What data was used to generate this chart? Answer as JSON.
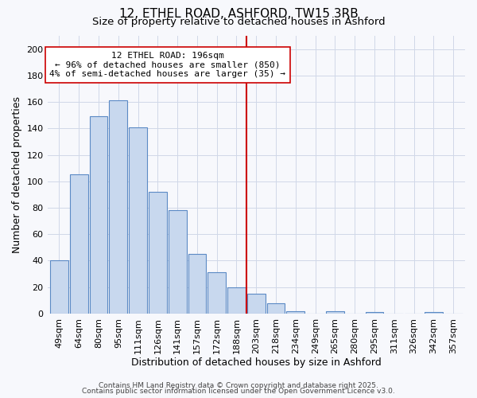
{
  "title": "12, ETHEL ROAD, ASHFORD, TW15 3RB",
  "subtitle": "Size of property relative to detached houses in Ashford",
  "xlabel": "Distribution of detached houses by size in Ashford",
  "ylabel": "Number of detached properties",
  "categories": [
    "49sqm",
    "64sqm",
    "80sqm",
    "95sqm",
    "111sqm",
    "126sqm",
    "141sqm",
    "157sqm",
    "172sqm",
    "188sqm",
    "203sqm",
    "218sqm",
    "234sqm",
    "249sqm",
    "265sqm",
    "280sqm",
    "295sqm",
    "311sqm",
    "326sqm",
    "342sqm",
    "357sqm"
  ],
  "values": [
    40,
    105,
    149,
    161,
    141,
    92,
    78,
    45,
    31,
    20,
    15,
    8,
    2,
    0,
    2,
    0,
    1,
    0,
    0,
    1,
    0
  ],
  "bar_color": "#c8d8ee",
  "bar_edge_color": "#5b8ac5",
  "background_color": "#f7f8fc",
  "grid_color": "#d0d8e8",
  "vline_x": 9.5,
  "vline_color": "#cc0000",
  "annotation_text": "12 ETHEL ROAD: 196sqm\n← 96% of detached houses are smaller (850)\n4% of semi-detached houses are larger (35) →",
  "annotation_box_color": "#ffffff",
  "annotation_box_edge_color": "#cc0000",
  "ylim": [
    0,
    210
  ],
  "yticks": [
    0,
    20,
    40,
    60,
    80,
    100,
    120,
    140,
    160,
    180,
    200
  ],
  "footer1": "Contains HM Land Registry data © Crown copyright and database right 2025.",
  "footer2": "Contains public sector information licensed under the Open Government Licence v3.0.",
  "title_fontsize": 11,
  "subtitle_fontsize": 9.5,
  "xlabel_fontsize": 9,
  "ylabel_fontsize": 9,
  "tick_fontsize": 8,
  "footer_fontsize": 6.5,
  "annot_fontsize": 8
}
